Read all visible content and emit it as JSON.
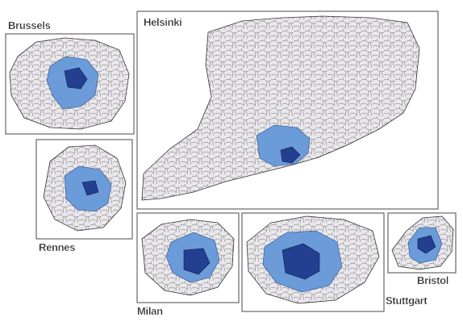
{
  "panels": [
    {
      "label": "Brussels"
    },
    {
      "label": "Helsinki"
    },
    {
      "label": "Rennes"
    },
    {
      "label": "Milan"
    },
    {
      "label": "Stuttgart"
    },
    {
      "label": "Bristol"
    }
  ]
}
